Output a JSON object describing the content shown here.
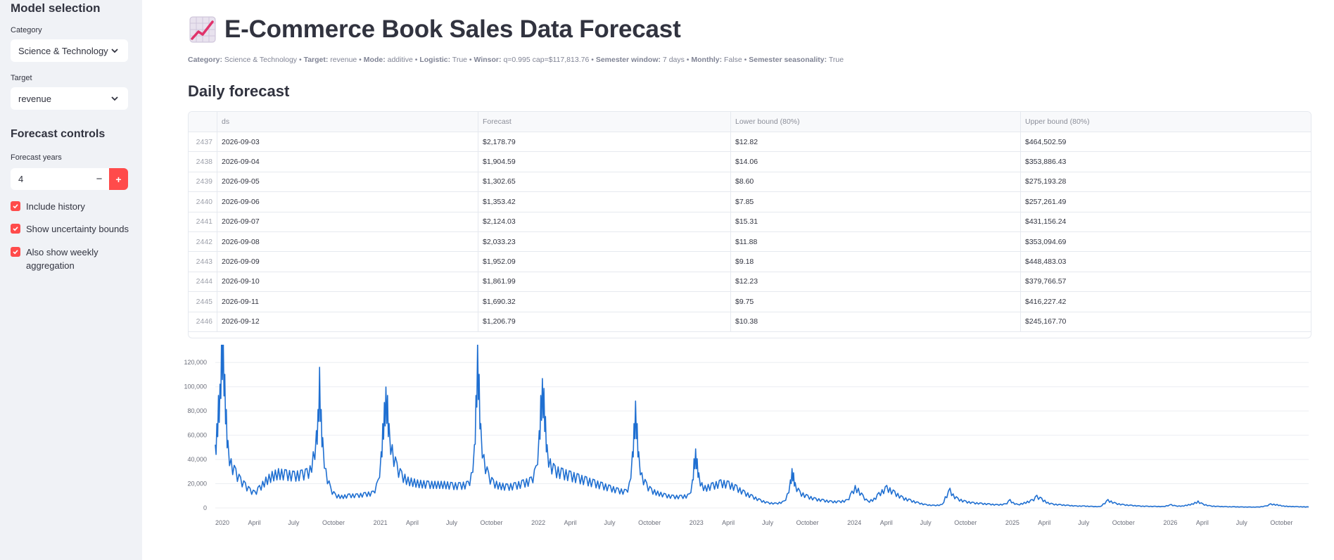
{
  "sidebar": {
    "model_heading": "Model selection",
    "category_label": "Category",
    "category_value": "Science & Technology",
    "target_label": "Target",
    "target_value": "revenue",
    "controls_heading": "Forecast controls",
    "years_label": "Forecast years",
    "years_value": "4",
    "minus": "−",
    "plus": "+",
    "checks": [
      {
        "label": "Include history",
        "checked": true
      },
      {
        "label": "Show uncertainty bounds",
        "checked": true
      },
      {
        "label": "Also show weekly aggregation",
        "checked": true
      }
    ]
  },
  "main": {
    "title_icon": "chart-increasing-icon",
    "title": "E-Commerce Book Sales Data Forecast",
    "meta": [
      {
        "key": "Category:",
        "value": "Science & Technology"
      },
      {
        "key": "Target:",
        "value": "revenue"
      },
      {
        "key": "Mode:",
        "value": "additive"
      },
      {
        "key": "Logistic:",
        "value": "True"
      },
      {
        "key": "Winsor:",
        "value": "q=0.995 cap=$117,813.76"
      },
      {
        "key": "Semester window:",
        "value": "7 days"
      },
      {
        "key": "Monthly:",
        "value": "False"
      },
      {
        "key": "Semester seasonality:",
        "value": "True"
      }
    ],
    "daily_heading": "Daily forecast"
  },
  "table": {
    "columns": [
      "",
      "ds",
      "Forecast",
      "Lower bound (80%)",
      "Upper bound (80%)"
    ],
    "rows": [
      [
        "2437",
        "2026-09-03",
        "$2,178.79",
        "$12.82",
        "$464,502.59"
      ],
      [
        "2438",
        "2026-09-04",
        "$1,904.59",
        "$14.06",
        "$353,886.43"
      ],
      [
        "2439",
        "2026-09-05",
        "$1,302.65",
        "$8.60",
        "$275,193.28"
      ],
      [
        "2440",
        "2026-09-06",
        "$1,353.42",
        "$7.85",
        "$257,261.49"
      ],
      [
        "2441",
        "2026-09-07",
        "$2,124.03",
        "$15.31",
        "$431,156.24"
      ],
      [
        "2442",
        "2026-09-08",
        "$2,033.23",
        "$11.88",
        "$353,094.69"
      ],
      [
        "2443",
        "2026-09-09",
        "$1,952.09",
        "$9.18",
        "$448,483.03"
      ],
      [
        "2444",
        "2026-09-10",
        "$1,861.99",
        "$12.23",
        "$379,766.57"
      ],
      [
        "2445",
        "2026-09-11",
        "$1,690.32",
        "$9.75",
        "$416,227.42"
      ],
      [
        "2446",
        "2026-09-12",
        "$1,206.79",
        "$10.38",
        "$245,167.70"
      ]
    ]
  },
  "chart_data": {
    "type": "line",
    "line_color": "#1f6fd1",
    "ylim": [
      0,
      130000
    ],
    "yticks": [
      0,
      20000,
      40000,
      60000,
      80000,
      100000,
      120000
    ],
    "ytick_labels": [
      "0",
      "20,000",
      "40,000",
      "60,000",
      "80,000",
      "100,000",
      "120,000"
    ],
    "xtick_labels": [
      "2020",
      "April",
      "July",
      "October",
      "2021",
      "April",
      "July",
      "October",
      "2022",
      "April",
      "July",
      "October",
      "2023",
      "April",
      "July",
      "October",
      "2024",
      "April",
      "July",
      "October",
      "2025",
      "April",
      "July",
      "October",
      "2026",
      "April",
      "July",
      "October"
    ],
    "x_start_year": 2020,
    "x_end_year": 2026.92,
    "grid": true,
    "series": [
      {
        "description": "daily revenue forecast",
        "values": [
          [
            2020.0,
            45000
          ],
          [
            2020.01,
            60000
          ],
          [
            2020.02,
            80000
          ],
          [
            2020.03,
            88000
          ],
          [
            2020.04,
            127000
          ],
          [
            2020.05,
            125000
          ],
          [
            2020.06,
            95000
          ],
          [
            2020.07,
            70000
          ],
          [
            2020.08,
            48000
          ],
          [
            2020.1,
            35000
          ],
          [
            2020.13,
            28000
          ],
          [
            2020.16,
            22000
          ],
          [
            2020.19,
            18000
          ],
          [
            2020.22,
            14000
          ],
          [
            2020.25,
            12000
          ],
          [
            2020.28,
            16000
          ],
          [
            2020.32,
            22000
          ],
          [
            2020.36,
            26000
          ],
          [
            2020.4,
            28000
          ],
          [
            2020.45,
            27000
          ],
          [
            2020.5,
            26000
          ],
          [
            2020.55,
            27000
          ],
          [
            2020.58,
            28000
          ],
          [
            2020.6,
            30000
          ],
          [
            2020.62,
            40000
          ],
          [
            2020.64,
            55000
          ],
          [
            2020.65,
            70000
          ],
          [
            2020.66,
            100000
          ],
          [
            2020.67,
            70000
          ],
          [
            2020.68,
            50000
          ],
          [
            2020.7,
            28000
          ],
          [
            2020.73,
            15000
          ],
          [
            2020.76,
            10000
          ],
          [
            2020.8,
            9000
          ],
          [
            2020.85,
            10000
          ],
          [
            2020.9,
            10000
          ],
          [
            2020.95,
            11000
          ],
          [
            2021.0,
            12000
          ],
          [
            2021.03,
            20000
          ],
          [
            2021.05,
            40000
          ],
          [
            2021.06,
            60000
          ],
          [
            2021.07,
            75000
          ],
          [
            2021.08,
            86000
          ],
          [
            2021.09,
            80000
          ],
          [
            2021.1,
            60000
          ],
          [
            2021.12,
            45000
          ],
          [
            2021.15,
            32000
          ],
          [
            2021.18,
            26000
          ],
          [
            2021.22,
            22000
          ],
          [
            2021.28,
            20000
          ],
          [
            2021.35,
            19000
          ],
          [
            2021.45,
            19000
          ],
          [
            2021.5,
            18000
          ],
          [
            2021.55,
            18000
          ],
          [
            2021.6,
            19000
          ],
          [
            2021.62,
            25000
          ],
          [
            2021.64,
            45000
          ],
          [
            2021.65,
            80000
          ],
          [
            2021.66,
            118000
          ],
          [
            2021.67,
            95000
          ],
          [
            2021.68,
            60000
          ],
          [
            2021.7,
            38000
          ],
          [
            2021.73,
            25000
          ],
          [
            2021.76,
            20000
          ],
          [
            2021.8,
            18000
          ],
          [
            2021.85,
            17000
          ],
          [
            2021.9,
            18000
          ],
          [
            2021.95,
            20000
          ],
          [
            2022.0,
            22000
          ],
          [
            2022.03,
            30000
          ],
          [
            2022.05,
            55000
          ],
          [
            2022.06,
            80000
          ],
          [
            2022.07,
            92000
          ],
          [
            2022.08,
            85000
          ],
          [
            2022.09,
            65000
          ],
          [
            2022.1,
            45000
          ],
          [
            2022.12,
            35000
          ],
          [
            2022.15,
            30000
          ],
          [
            2022.2,
            28000
          ],
          [
            2022.25,
            26000
          ],
          [
            2022.3,
            24000
          ],
          [
            2022.35,
            22000
          ],
          [
            2022.4,
            20000
          ],
          [
            2022.45,
            18000
          ],
          [
            2022.5,
            16000
          ],
          [
            2022.55,
            14000
          ],
          [
            2022.6,
            13000
          ],
          [
            2022.62,
            18000
          ],
          [
            2022.64,
            40000
          ],
          [
            2022.65,
            60000
          ],
          [
            2022.66,
            76000
          ],
          [
            2022.67,
            60000
          ],
          [
            2022.68,
            40000
          ],
          [
            2022.7,
            25000
          ],
          [
            2022.73,
            18000
          ],
          [
            2022.76,
            14000
          ],
          [
            2022.8,
            12000
          ],
          [
            2022.85,
            10000
          ],
          [
            2022.9,
            9000
          ],
          [
            2022.95,
            9000
          ],
          [
            2023.0,
            10000
          ],
          [
            2023.02,
            20000
          ],
          [
            2023.03,
            35000
          ],
          [
            2023.04,
            42000
          ],
          [
            2023.05,
            35000
          ],
          [
            2023.06,
            25000
          ],
          [
            2023.08,
            18000
          ],
          [
            2023.1,
            16000
          ],
          [
            2023.15,
            18000
          ],
          [
            2023.2,
            20000
          ],
          [
            2023.25,
            19000
          ],
          [
            2023.3,
            16000
          ],
          [
            2023.35,
            12000
          ],
          [
            2023.4,
            9000
          ],
          [
            2023.45,
            6000
          ],
          [
            2023.5,
            4000
          ],
          [
            2023.55,
            3500
          ],
          [
            2023.6,
            5000
          ],
          [
            2023.62,
            10000
          ],
          [
            2023.64,
            20000
          ],
          [
            2023.65,
            28000
          ],
          [
            2023.66,
            25000
          ],
          [
            2023.67,
            18000
          ],
          [
            2023.7,
            12000
          ],
          [
            2023.75,
            9000
          ],
          [
            2023.8,
            7000
          ],
          [
            2023.85,
            6000
          ],
          [
            2023.9,
            5000
          ],
          [
            2023.95,
            5000
          ],
          [
            2024.0,
            6000
          ],
          [
            2024.03,
            12000
          ],
          [
            2024.05,
            16000
          ],
          [
            2024.07,
            14000
          ],
          [
            2024.1,
            9000
          ],
          [
            2024.13,
            5000
          ],
          [
            2024.17,
            7000
          ],
          [
            2024.2,
            11000
          ],
          [
            2024.25,
            16000
          ],
          [
            2024.3,
            12000
          ],
          [
            2024.35,
            8000
          ],
          [
            2024.4,
            6000
          ],
          [
            2024.45,
            4000
          ],
          [
            2024.5,
            2500
          ],
          [
            2024.55,
            2000
          ],
          [
            2024.6,
            2500
          ],
          [
            2024.62,
            8000
          ],
          [
            2024.65,
            14000
          ],
          [
            2024.67,
            10000
          ],
          [
            2024.7,
            7000
          ],
          [
            2024.75,
            5000
          ],
          [
            2024.8,
            4000
          ],
          [
            2024.85,
            3500
          ],
          [
            2024.9,
            3000
          ],
          [
            2024.95,
            2500
          ],
          [
            2025.0,
            3000
          ],
          [
            2025.03,
            6000
          ],
          [
            2025.05,
            4000
          ],
          [
            2025.08,
            2500
          ],
          [
            2025.12,
            4000
          ],
          [
            2025.17,
            6000
          ],
          [
            2025.2,
            9000
          ],
          [
            2025.23,
            7000
          ],
          [
            2025.27,
            4000
          ],
          [
            2025.3,
            3000
          ],
          [
            2025.35,
            2500
          ],
          [
            2025.4,
            2000
          ],
          [
            2025.45,
            1500
          ],
          [
            2025.5,
            1500
          ],
          [
            2025.55,
            1200
          ],
          [
            2025.6,
            1000
          ],
          [
            2025.62,
            3000
          ],
          [
            2025.65,
            6000
          ],
          [
            2025.67,
            5000
          ],
          [
            2025.7,
            3500
          ],
          [
            2025.75,
            2500
          ],
          [
            2025.8,
            2000
          ],
          [
            2025.85,
            1500
          ],
          [
            2025.9,
            1300
          ],
          [
            2025.95,
            1200
          ],
          [
            2026.0,
            1100
          ],
          [
            2026.05,
            2500
          ],
          [
            2026.08,
            1500
          ],
          [
            2026.12,
            1500
          ],
          [
            2026.18,
            3000
          ],
          [
            2026.22,
            5000
          ],
          [
            2026.25,
            3000
          ],
          [
            2026.3,
            1500
          ],
          [
            2026.35,
            1200
          ],
          [
            2026.4,
            1000
          ],
          [
            2026.45,
            900
          ],
          [
            2026.5,
            800
          ],
          [
            2026.55,
            700
          ],
          [
            2026.6,
            700
          ],
          [
            2026.65,
            1500
          ],
          [
            2026.68,
            3000
          ],
          [
            2026.72,
            2500
          ],
          [
            2026.76,
            1500
          ],
          [
            2026.8,
            1200
          ],
          [
            2026.85,
            1000
          ],
          [
            2026.92,
            800
          ]
        ]
      }
    ]
  }
}
